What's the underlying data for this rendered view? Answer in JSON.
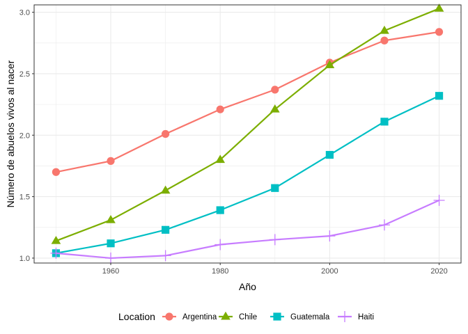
{
  "chart_data": {
    "type": "line",
    "title": "",
    "xlabel": "Año",
    "ylabel": "Número de abuelos vivos al nacer",
    "xlim": [
      1946,
      2024
    ],
    "ylim": [
      0.96,
      3.06
    ],
    "x_ticks": [
      1960,
      1980,
      2000,
      2020
    ],
    "y_ticks": [
      1.0,
      1.5,
      2.0,
      2.5,
      3.0
    ],
    "x_tick_labels": [
      "1960",
      "1980",
      "2000",
      "2020"
    ],
    "y_tick_labels": [
      "1.0",
      "1.5",
      "2.0",
      "2.5",
      "3.0"
    ],
    "x": [
      1950,
      1960,
      1970,
      1980,
      1990,
      2000,
      2010,
      2020
    ],
    "legend_title": "Location",
    "legend_position": "bottom",
    "grid": true,
    "series": [
      {
        "name": "Argentina",
        "color": "#F8766D",
        "marker": "circle",
        "values": [
          1.7,
          1.79,
          2.01,
          2.21,
          2.37,
          2.59,
          2.77,
          2.84
        ]
      },
      {
        "name": "Chile",
        "color": "#7CAE00",
        "marker": "triangle",
        "values": [
          1.14,
          1.31,
          1.55,
          1.8,
          2.21,
          2.57,
          2.85,
          3.03
        ]
      },
      {
        "name": "Guatemala",
        "color": "#00BFC4",
        "marker": "square",
        "values": [
          1.04,
          1.12,
          1.23,
          1.39,
          1.57,
          1.84,
          2.11,
          2.32
        ]
      },
      {
        "name": "Haiti",
        "color": "#C77CFF",
        "marker": "plus",
        "values": [
          1.04,
          1.0,
          1.02,
          1.11,
          1.15,
          1.18,
          1.27,
          1.47
        ]
      }
    ]
  }
}
